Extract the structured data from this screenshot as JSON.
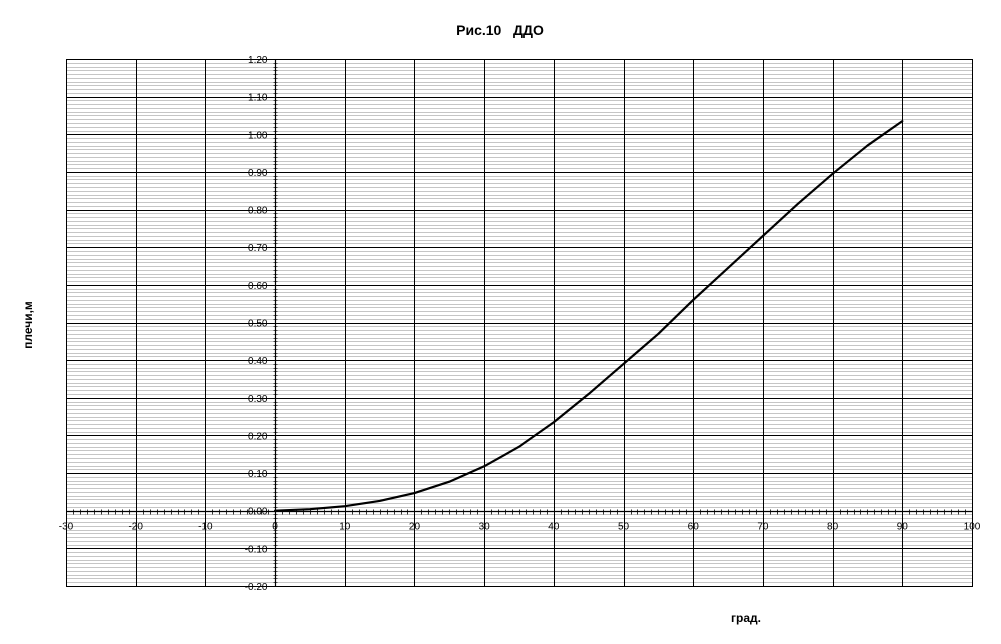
{
  "chart_data": {
    "type": "line",
    "title": "Рис.10   ДДО",
    "xlabel": "град.",
    "ylabel": "плечи,м",
    "xlim": [
      -30,
      100
    ],
    "ylim": [
      -0.2,
      1.2
    ],
    "x_major_step": 10,
    "y_major_step": 0.1,
    "grid": true,
    "legend": "none",
    "x_tick_labels": [
      "-30",
      "-20",
      "-10",
      "0",
      "10",
      "20",
      "30",
      "40",
      "50",
      "60",
      "70",
      "80",
      "90",
      "100"
    ],
    "y_tick_labels": [
      "1.20",
      "1.10",
      "1.00",
      "0.90",
      "0.80",
      "0.70",
      "0.60",
      "0.50",
      "0.40",
      "0.30",
      "0.20",
      "0.10",
      "0.00",
      "-0.10",
      "-0.20"
    ],
    "series": [
      {
        "color": "#000000",
        "x": [
          0,
          5,
          10,
          15,
          20,
          25,
          30,
          35,
          40,
          45,
          50,
          55,
          60,
          65,
          70,
          75,
          80,
          85,
          90
        ],
        "y": [
          0.0,
          0.004,
          0.012,
          0.026,
          0.047,
          0.077,
          0.118,
          0.17,
          0.235,
          0.31,
          0.39,
          0.47,
          0.56,
          0.645,
          0.73,
          0.815,
          0.895,
          0.97,
          1.035
        ]
      }
    ]
  }
}
